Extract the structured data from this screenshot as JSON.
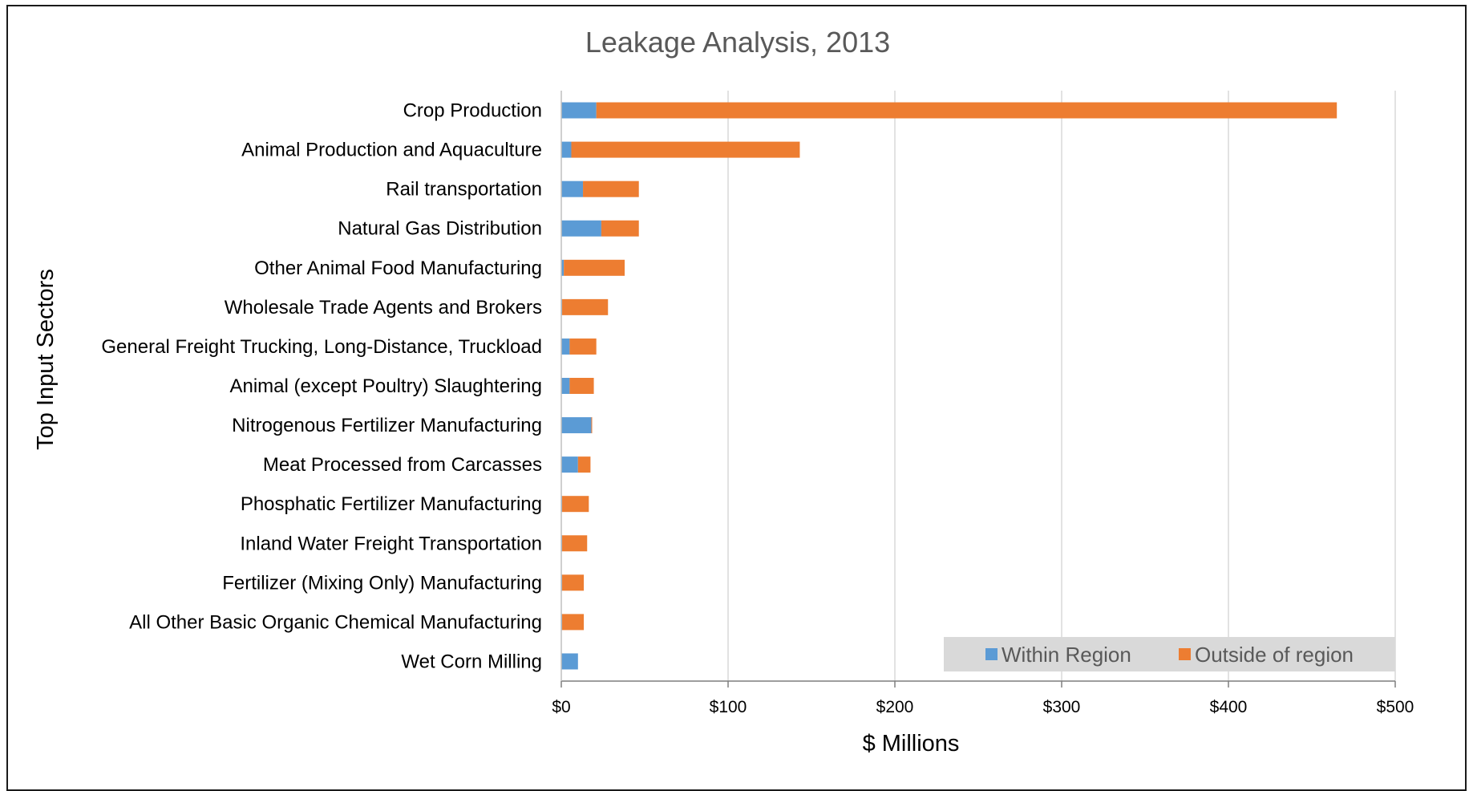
{
  "chart_data": {
    "type": "bar",
    "orientation": "horizontal",
    "stacked": true,
    "title": "Leakage Analysis, 2013",
    "xlabel": "$ Millions",
    "ylabel": "Top Input Sectors",
    "xlim": [
      0,
      500
    ],
    "xticks": [
      0,
      100,
      200,
      300,
      400,
      500
    ],
    "xtick_labels": [
      "$0",
      "$100",
      "$200",
      "$300",
      "$400",
      "$500"
    ],
    "grid": "vertical",
    "legend_position": "bottom-right",
    "categories": [
      "Crop Production",
      "Animal Production and Aquaculture",
      "Rail transportation",
      "Natural Gas Distribution",
      "Other Animal Food Manufacturing",
      "Wholesale Trade Agents and Brokers",
      "General Freight Trucking, Long-Distance, Truckload",
      "Animal (except Poultry) Slaughtering",
      "Nitrogenous Fertilizer Manufacturing",
      "Meat Processed from Carcasses",
      "Phosphatic Fertilizer Manufacturing",
      "Inland Water Freight Transportation",
      "Fertilizer (Mixing Only) Manufacturing",
      "All Other Basic Organic Chemical Manufacturing",
      "Wet Corn Milling"
    ],
    "series": [
      {
        "name": "Within Region",
        "color": "#5b9bd5",
        "values": [
          21,
          6,
          13,
          24,
          1.5,
          0.5,
          5,
          5,
          18,
          10,
          0.5,
          0.5,
          0.5,
          0.5,
          10
        ]
      },
      {
        "name": "Outside of region",
        "color": "#ed7d31",
        "values": [
          444,
          137,
          33.5,
          22.5,
          36.5,
          27.5,
          16,
          14.5,
          0.5,
          7.5,
          16,
          15,
          13,
          13,
          0
        ]
      }
    ]
  }
}
